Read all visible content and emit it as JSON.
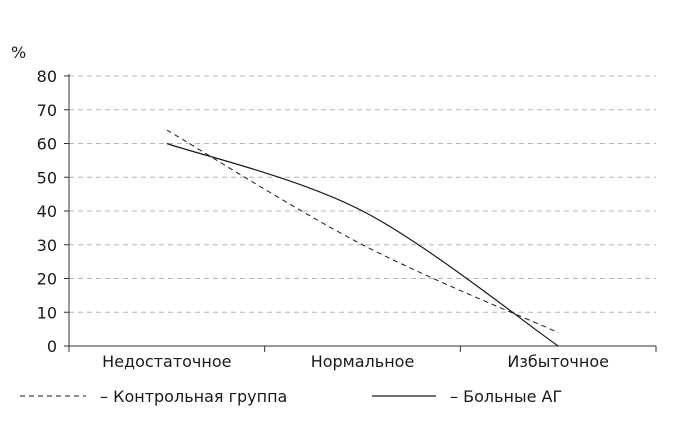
{
  "chart_data": {
    "type": "line",
    "title": "",
    "xlabel": "",
    "ylabel": "%",
    "ylim": [
      0,
      80
    ],
    "yticks": [
      "0",
      "10",
      "20",
      "30",
      "40",
      "50",
      "60",
      "70",
      "80"
    ],
    "categories": [
      "Недостаточное",
      "Нормальное",
      "Избыточное"
    ],
    "grid": true,
    "legend_position": "bottom",
    "series": [
      {
        "name": "Контрольная группа",
        "style": "dashed",
        "color": "#1a1a1a",
        "values": [
          64,
          30,
          4
        ]
      },
      {
        "name": "Больные АГ",
        "style": "solid",
        "color": "#1a1a1a",
        "values": [
          60,
          40,
          0
        ]
      }
    ],
    "legend": [
      {
        "marker": "dashed",
        "label": "– Контрольная группа"
      },
      {
        "marker": "solid",
        "label": "– Больные АГ"
      }
    ]
  }
}
